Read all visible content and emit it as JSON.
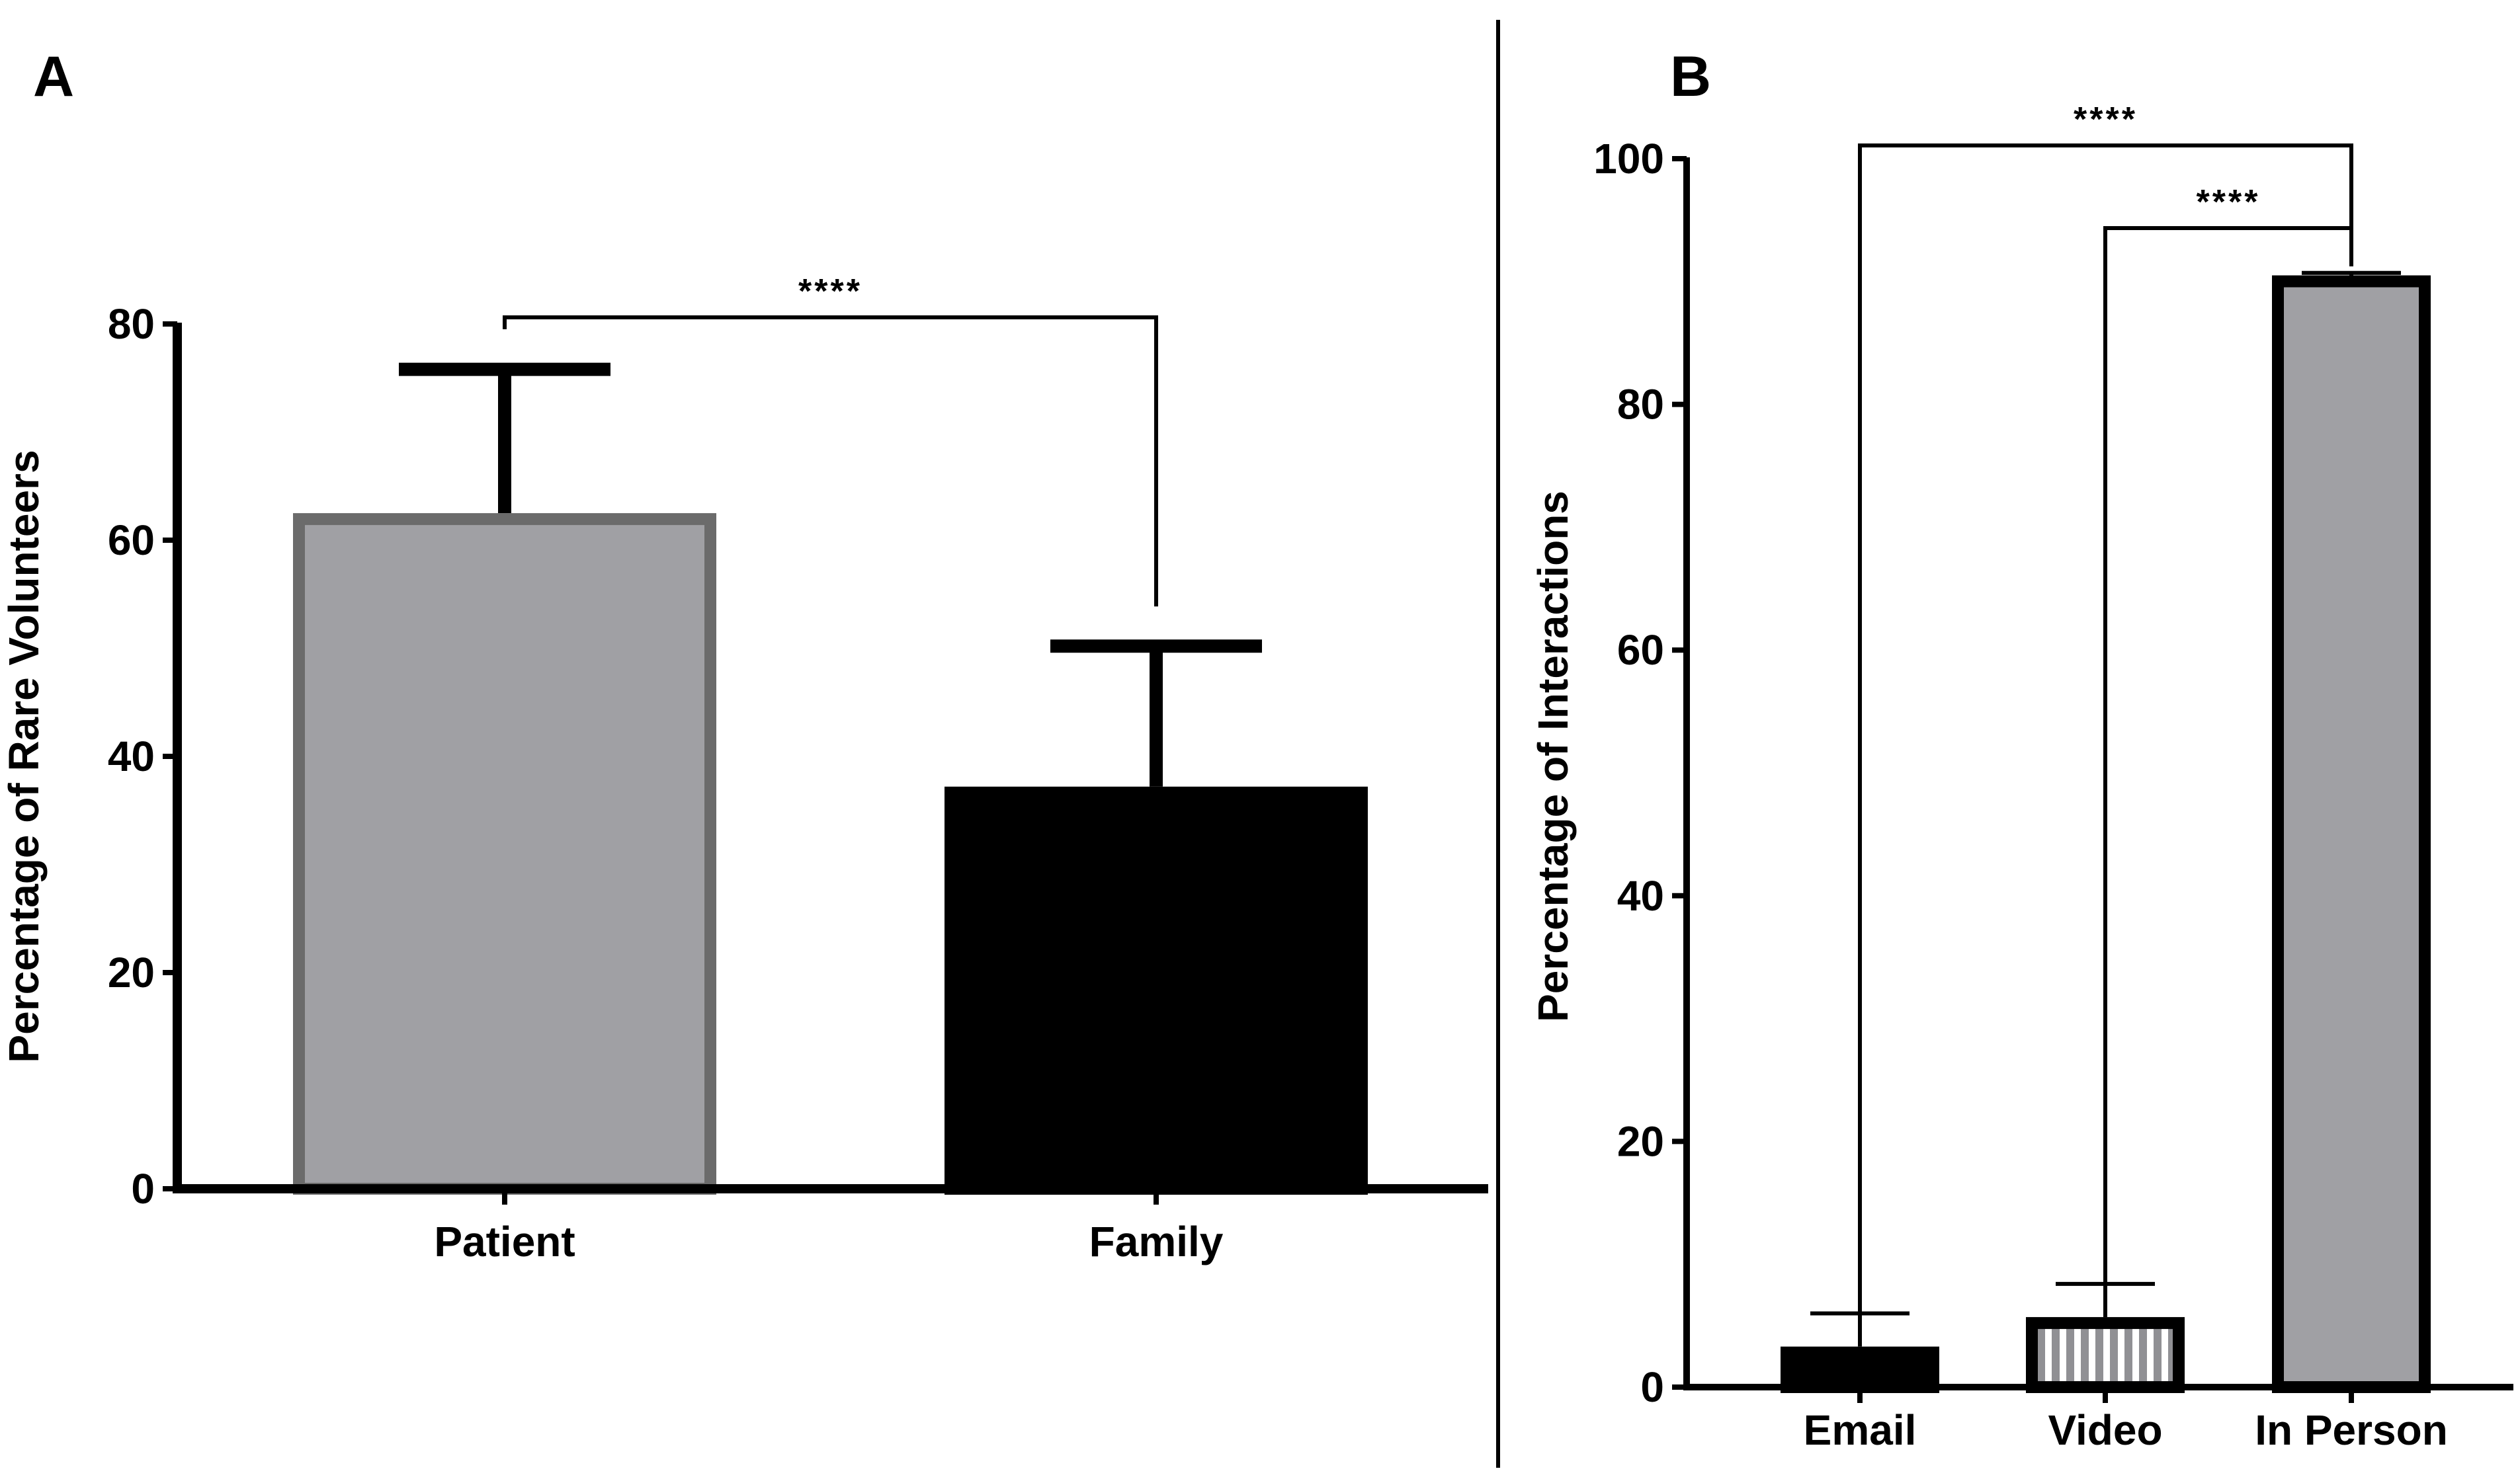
{
  "panels": [
    {
      "letter": "A",
      "chart_data": {
        "type": "bar",
        "title": "",
        "xlabel": "",
        "ylabel": "Percentage of Rare  Volunteers",
        "categories": [
          "Patient",
          "Family"
        ],
        "values": [
          62.5,
          37.2
        ],
        "errors": [
          13.3,
          13.0
        ],
        "ylim": [
          0,
          80
        ],
        "yticks": [
          0,
          20,
          40,
          60,
          80
        ],
        "grid": false,
        "legend": "none",
        "bar_fills": [
          "#a0a0a4",
          "#000000"
        ],
        "bar_patterns": [
          "solid",
          "solid"
        ],
        "bar_outlines": [
          "#6b6b6b",
          "#000000"
        ],
        "significance": [
          {
            "from": 0,
            "to": 1,
            "label": "****"
          }
        ]
      }
    },
    {
      "letter": "B",
      "chart_data": {
        "type": "bar",
        "title": "",
        "xlabel": "",
        "ylabel": "Percentage of Interactions",
        "categories": [
          "Email",
          "Video",
          "In Person"
        ],
        "values": [
          3.3,
          5.7,
          90.5
        ],
        "errors": [
          2.7,
          2.7,
          0.2
        ],
        "ylim": [
          0,
          100
        ],
        "yticks": [
          0,
          20,
          40,
          60,
          80,
          100
        ],
        "grid": false,
        "legend": "none",
        "bar_fills": [
          "#000000",
          "#a0a0a4",
          "#a0a0a4"
        ],
        "bar_patterns": [
          "solid",
          "vertical-stripes",
          "solid"
        ],
        "bar_outlines": [
          "#000000",
          "#000000",
          "#000000"
        ],
        "significance": [
          {
            "from": 0,
            "to": 2,
            "label": "****"
          },
          {
            "from": 1,
            "to": 2,
            "label": "****"
          }
        ]
      }
    }
  ]
}
